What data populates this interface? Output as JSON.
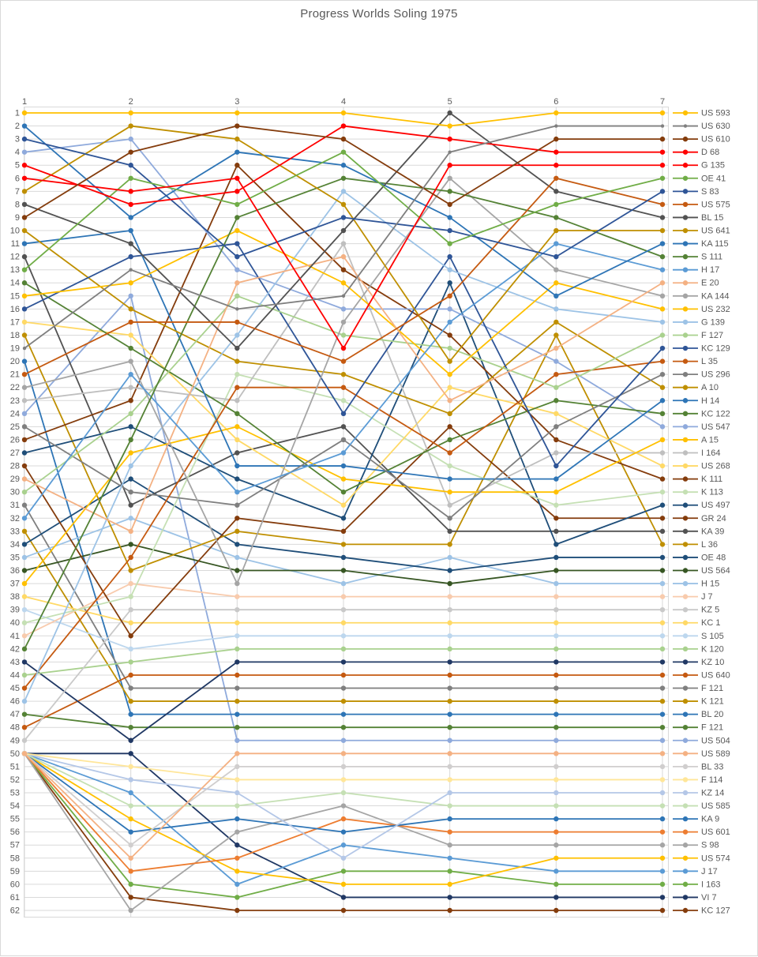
{
  "title": "Progress Worlds Soling 1975",
  "colors": {
    "grid": "#d9d9d9",
    "axis_text": "#595959",
    "background": "#ffffff",
    "highlight_red": "#ff0000"
  },
  "axes": {
    "x_ticks": [
      "1",
      "2",
      "3",
      "4",
      "5",
      "6",
      "7"
    ],
    "x_position": "top",
    "y_tick_min": 1,
    "y_tick_max": 62,
    "y_tick_step": 1,
    "y_position": "left",
    "y_inverted": true
  },
  "chart_data": {
    "type": "line",
    "title": "Progress Worlds Soling 1975",
    "xlabel": "",
    "ylabel": "",
    "x": [
      1,
      2,
      3,
      4,
      5,
      6,
      7
    ],
    "x_tick_labels": [
      "1",
      "2",
      "3",
      "4",
      "5",
      "6",
      "7"
    ],
    "ylim": [
      1,
      62
    ],
    "y_inverted": true,
    "grid": true,
    "legend_position": "right",
    "note": "ranks per race; race 1 has a 13-way tie at rank 50",
    "series": [
      {
        "name": "US 593",
        "color": "#FFC000",
        "ranks": [
          1,
          1,
          1,
          1,
          2,
          1,
          1
        ]
      },
      {
        "name": "US 630",
        "color": "#7F7F7F",
        "marker": "small",
        "ranks": [
          19,
          13,
          16,
          15,
          4,
          2,
          2
        ]
      },
      {
        "name": "US 610",
        "color": "#843C0C",
        "ranks": [
          9,
          4,
          2,
          3,
          8,
          3,
          3
        ]
      },
      {
        "name": "D 68",
        "color": "#FF0000",
        "ranks": [
          5,
          8,
          7,
          2,
          3,
          4,
          4
        ]
      },
      {
        "name": "G 135",
        "color": "#FF0000",
        "ranks": [
          6,
          7,
          6,
          19,
          5,
          5,
          5
        ]
      },
      {
        "name": "OE 41",
        "color": "#70AD47",
        "ranks": [
          13,
          6,
          8,
          4,
          11,
          8,
          6
        ]
      },
      {
        "name": "S 83",
        "color": "#2F5597",
        "ranks": [
          3,
          5,
          12,
          9,
          10,
          12,
          7
        ]
      },
      {
        "name": "US 575",
        "color": "#C55A11",
        "ranks": [
          21,
          17,
          17,
          20,
          15,
          6,
          8
        ]
      },
      {
        "name": "BL 15",
        "color": "#525252",
        "ranks": [
          8,
          11,
          19,
          10,
          1,
          7,
          9
        ]
      },
      {
        "name": "US 641",
        "color": "#BF8F00",
        "ranks": [
          7,
          2,
          3,
          8,
          20,
          10,
          10
        ]
      },
      {
        "name": "KA 115",
        "color": "#2E75B6",
        "ranks": [
          2,
          9,
          4,
          5,
          9,
          15,
          11
        ]
      },
      {
        "name": "S 111",
        "color": "#548235",
        "ranks": [
          42,
          26,
          9,
          6,
          7,
          9,
          12
        ]
      },
      {
        "name": "H 17",
        "color": "#5B9BD5",
        "ranks": [
          32,
          21,
          30,
          27,
          17,
          11,
          13
        ]
      },
      {
        "name": "E 20",
        "color": "#F4B183",
        "ranks": [
          29,
          33,
          14,
          12,
          23,
          19,
          14
        ]
      },
      {
        "name": "KA 144",
        "color": "#A5A5A5",
        "ranks": [
          22,
          20,
          37,
          17,
          6,
          13,
          15
        ]
      },
      {
        "name": "US 232",
        "color": "#FFC000",
        "ranks": [
          15,
          14,
          10,
          14,
          21,
          14,
          16
        ]
      },
      {
        "name": "G 139",
        "color": "#9DC3E6",
        "ranks": [
          46,
          28,
          18,
          7,
          13,
          16,
          17
        ]
      },
      {
        "name": "F 127",
        "color": "#A9D18E",
        "ranks": [
          30,
          24,
          15,
          18,
          19,
          22,
          18
        ]
      },
      {
        "name": "KC 129",
        "color": "#2F5597",
        "ranks": [
          16,
          12,
          11,
          24,
          12,
          28,
          19
        ]
      },
      {
        "name": "L 35",
        "color": "#C55A11",
        "ranks": [
          45,
          35,
          22,
          22,
          27,
          21,
          20
        ]
      },
      {
        "name": "US 296",
        "color": "#7F7F7F",
        "ranks": [
          25,
          30,
          31,
          26,
          32,
          25,
          21
        ]
      },
      {
        "name": "A 10",
        "color": "#BF8F00",
        "ranks": [
          10,
          16,
          20,
          21,
          24,
          17,
          22
        ]
      },
      {
        "name": "H 14",
        "color": "#2E75B6",
        "ranks": [
          11,
          10,
          28,
          28,
          29,
          29,
          23
        ]
      },
      {
        "name": "KC 122",
        "color": "#548235",
        "ranks": [
          14,
          19,
          24,
          30,
          26,
          23,
          24
        ]
      },
      {
        "name": "US 547",
        "color": "#8FAADC",
        "ranks": [
          4,
          3,
          13,
          16,
          16,
          20,
          25
        ]
      },
      {
        "name": "A 15",
        "color": "#FFC000",
        "ranks": [
          37,
          27,
          25,
          29,
          30,
          30,
          26
        ]
      },
      {
        "name": "I 164",
        "color": "#BFBFBF",
        "ranks": [
          23,
          22,
          23,
          11,
          31,
          27,
          27
        ]
      },
      {
        "name": "US 268",
        "color": "#FFD966",
        "ranks": [
          17,
          18,
          26,
          31,
          22,
          24,
          28
        ]
      },
      {
        "name": "K 111",
        "color": "#843C0C",
        "ranks": [
          26,
          23,
          5,
          13,
          18,
          26,
          29
        ]
      },
      {
        "name": "K 113",
        "color": "#C5E0B4",
        "ranks": [
          40,
          38,
          21,
          23,
          28,
          31,
          30
        ]
      },
      {
        "name": "US 497",
        "color": "#1F4E79",
        "ranks": [
          27,
          25,
          29,
          32,
          14,
          34,
          31
        ]
      },
      {
        "name": "GR 24",
        "color": "#843C0C",
        "ranks": [
          28,
          41,
          32,
          33,
          25,
          32,
          32
        ]
      },
      {
        "name": "KA 39",
        "color": "#525252",
        "ranks": [
          12,
          31,
          27,
          25,
          33,
          33,
          33
        ]
      },
      {
        "name": "L 36",
        "color": "#BF8F00",
        "ranks": [
          18,
          36,
          33,
          34,
          34,
          18,
          34
        ]
      },
      {
        "name": "OE 48",
        "color": "#1F4E79",
        "ranks": [
          34,
          29,
          34,
          35,
          36,
          35,
          35
        ]
      },
      {
        "name": "US 564",
        "color": "#375623",
        "ranks": [
          36,
          34,
          36,
          36,
          37,
          36,
          36
        ]
      },
      {
        "name": "H 15",
        "color": "#9DC3E6",
        "ranks": [
          35,
          32,
          35,
          37,
          35,
          37,
          37
        ]
      },
      {
        "name": "J 7",
        "color": "#F8CBAD",
        "ranks": [
          41,
          37,
          38,
          38,
          38,
          38,
          38
        ]
      },
      {
        "name": "KZ 5",
        "color": "#C9C9C9",
        "ranks": [
          49,
          39,
          39,
          39,
          39,
          39,
          39
        ]
      },
      {
        "name": "KC 1",
        "color": "#FFD966",
        "ranks": [
          38,
          40,
          40,
          40,
          40,
          40,
          40
        ]
      },
      {
        "name": "S 105",
        "color": "#BDD7EE",
        "ranks": [
          39,
          42,
          41,
          41,
          41,
          41,
          41
        ]
      },
      {
        "name": "K 120",
        "color": "#A9D18E",
        "ranks": [
          44,
          43,
          42,
          42,
          42,
          42,
          42
        ]
      },
      {
        "name": "KZ 10",
        "color": "#203864",
        "ranks": [
          43,
          49,
          43,
          43,
          43,
          43,
          43
        ]
      },
      {
        "name": "US 640",
        "color": "#C55A11",
        "ranks": [
          48,
          44,
          44,
          44,
          44,
          44,
          44
        ]
      },
      {
        "name": "F 121",
        "color": "#7F7F7F",
        "ranks": [
          31,
          45,
          45,
          45,
          45,
          45,
          45
        ]
      },
      {
        "name": "K 121",
        "color": "#BF8F00",
        "ranks": [
          33,
          46,
          46,
          46,
          46,
          46,
          46
        ]
      },
      {
        "name": "BL 20",
        "color": "#2E75B6",
        "ranks": [
          20,
          47,
          47,
          47,
          47,
          47,
          47
        ]
      },
      {
        "name": "F 121",
        "color": "#548235",
        "ranks": [
          47,
          48,
          48,
          48,
          48,
          48,
          48
        ]
      },
      {
        "name": "US 504",
        "color": "#8FAADC",
        "ranks": [
          24,
          15,
          49,
          49,
          49,
          49,
          49
        ]
      },
      {
        "name": "US 589",
        "color": "#F4B183",
        "ranks": [
          50,
          58,
          50,
          50,
          50,
          50,
          50
        ]
      },
      {
        "name": "BL 33",
        "color": "#D0CECE",
        "ranks": [
          50,
          57,
          51,
          51,
          51,
          51,
          51
        ]
      },
      {
        "name": "F 114",
        "color": "#FFE699",
        "ranks": [
          50,
          51,
          52,
          52,
          52,
          52,
          52
        ]
      },
      {
        "name": "KZ 14",
        "color": "#B4C7E7",
        "ranks": [
          50,
          52,
          53,
          58,
          53,
          53,
          53
        ]
      },
      {
        "name": "US 585",
        "color": "#C5E0B4",
        "ranks": [
          50,
          54,
          54,
          53,
          54,
          54,
          54
        ]
      },
      {
        "name": "KA 9",
        "color": "#2E75B6",
        "ranks": [
          50,
          56,
          55,
          56,
          55,
          55,
          55
        ]
      },
      {
        "name": "US 601",
        "color": "#ED7D31",
        "ranks": [
          50,
          59,
          58,
          55,
          56,
          56,
          56
        ]
      },
      {
        "name": "S 98",
        "color": "#A5A5A5",
        "ranks": [
          50,
          62,
          56,
          54,
          57,
          57,
          57
        ]
      },
      {
        "name": "US 574",
        "color": "#FFC000",
        "ranks": [
          50,
          55,
          59,
          60,
          60,
          58,
          58
        ]
      },
      {
        "name": "J 17",
        "color": "#5B9BD5",
        "ranks": [
          50,
          53,
          60,
          57,
          58,
          59,
          59
        ]
      },
      {
        "name": "I 163",
        "color": "#70AD47",
        "ranks": [
          50,
          60,
          61,
          59,
          59,
          60,
          60
        ]
      },
      {
        "name": "VI 7",
        "color": "#203864",
        "ranks": [
          50,
          50,
          57,
          61,
          61,
          61,
          61
        ]
      },
      {
        "name": "KC 127",
        "color": "#843C0C",
        "ranks": [
          50,
          61,
          62,
          62,
          62,
          62,
          62
        ]
      }
    ]
  }
}
